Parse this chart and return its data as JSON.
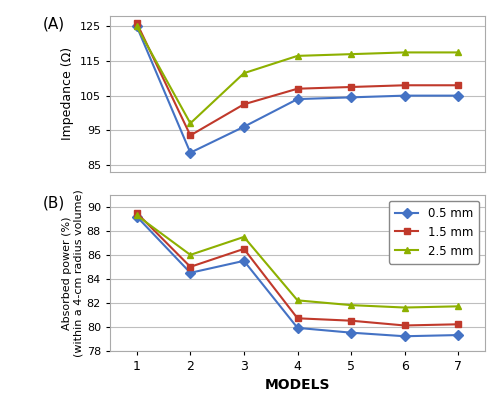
{
  "models": [
    1,
    2,
    3,
    4,
    5,
    6,
    7
  ],
  "impedance": {
    "0.5mm": [
      125.0,
      88.5,
      96.0,
      104.0,
      104.5,
      105.0,
      105.0
    ],
    "1.5mm": [
      126.0,
      93.5,
      102.5,
      107.0,
      107.5,
      108.0,
      108.0
    ],
    "2.5mm": [
      125.0,
      97.0,
      111.5,
      116.5,
      117.0,
      117.5,
      117.5
    ]
  },
  "absorbed": {
    "0.5mm": [
      89.2,
      84.5,
      85.5,
      79.9,
      79.5,
      79.2,
      79.3
    ],
    "1.5mm": [
      89.5,
      85.0,
      86.5,
      80.7,
      80.5,
      80.1,
      80.2
    ],
    "2.5mm": [
      89.3,
      86.0,
      87.5,
      82.2,
      81.8,
      81.6,
      81.7
    ]
  },
  "colors": {
    "0.5mm": "#4472C4",
    "1.5mm": "#C0392B",
    "2.5mm": "#8DB000"
  },
  "markers": {
    "0.5mm": "D",
    "1.5mm": "s",
    "2.5mm": "^"
  },
  "legend_labels": {
    "0.5mm": "0.5 mm",
    "1.5mm": "1.5 mm",
    "2.5mm": "2.5 mm"
  },
  "panel_A_label": "(A)",
  "panel_B_label": "(B)",
  "ylabel_A": "Impedance (Ω)",
  "ylabel_B": "Absorbed power (%)\n(within a 4-cm radius volume)",
  "xlabel": "MODELS",
  "ylim_A": [
    83,
    128
  ],
  "ylim_B": [
    78,
    91
  ],
  "yticks_A": [
    85,
    95,
    105,
    115,
    125
  ],
  "yticks_B": [
    78,
    80,
    82,
    84,
    86,
    88,
    90
  ],
  "bg_color": "#FFFFFF",
  "grid_color": "#BEBEBE",
  "linewidth": 1.5,
  "markersize": 5
}
